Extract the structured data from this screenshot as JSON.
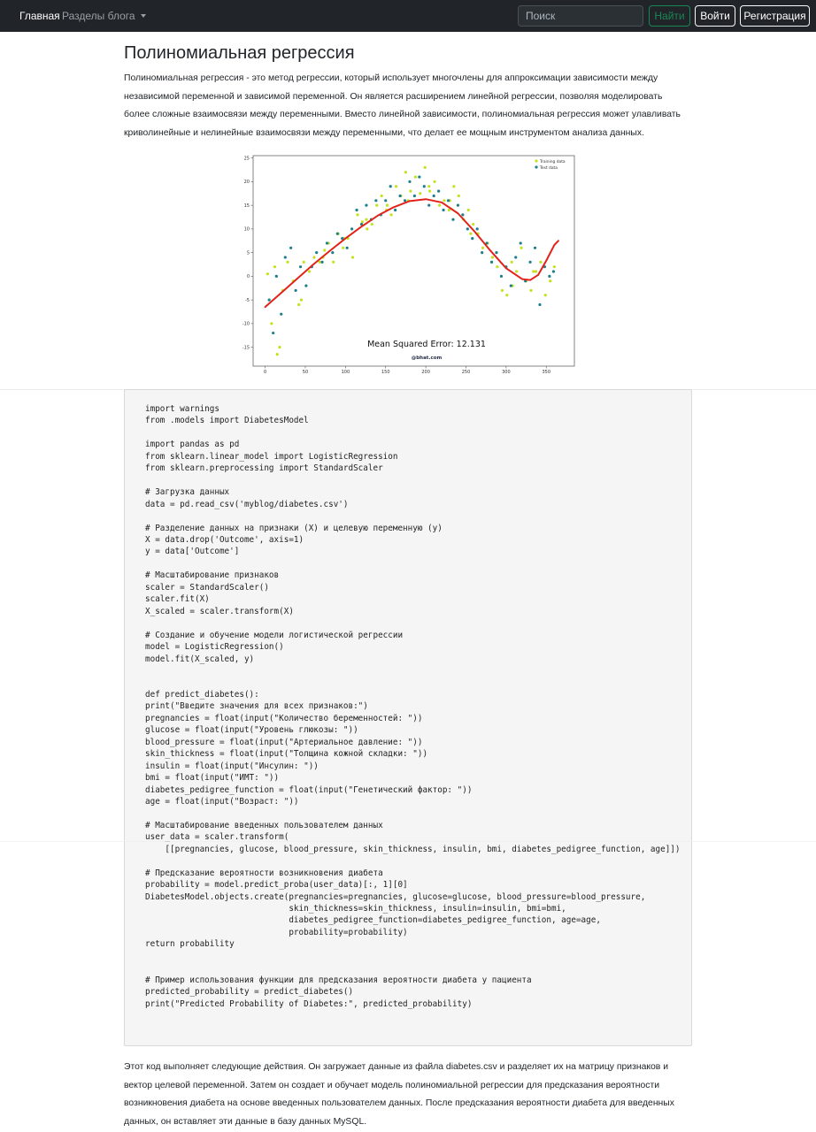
{
  "navbar": {
    "home_label": "Главная",
    "categories_label": "Разделы блога",
    "search_placeholder": "Поиск",
    "find_label": "Найти",
    "login_label": "Войти",
    "register_label": "Регистрация"
  },
  "article": {
    "title": "Полиномиальная регрессия",
    "intro": "Полиномиальная регрессия - это метод регрессии, который использует многочлены для аппроксимации зависимости между независимой переменной и зависимой переменной. Он является расширением линейной регрессии, позволяя моделировать более сложные взаимосвязи между переменными. Вместо линейной зависимости, полиномиальная регрессия может улавливать криволинейные и нелинейные взаимосвязи между переменными, что делает ее мощным инструментом анализа данных.",
    "code": "import warnings\nfrom .models import DiabetesModel\n\nimport pandas as pd\nfrom sklearn.linear_model import LogisticRegression\nfrom sklearn.preprocessing import StandardScaler\n\n# Загрузка данных\ndata = pd.read_csv('myblog/diabetes.csv')\n\n# Разделение данных на признаки (X) и целевую переменную (y)\nX = data.drop('Outcome', axis=1)\ny = data['Outcome']\n\n# Масштабирование признаков\nscaler = StandardScaler()\nscaler.fit(X)\nX_scaled = scaler.transform(X)\n\n# Создание и обучение модели логистической регрессии\nmodel = LogisticRegression()\nmodel.fit(X_scaled, y)\n\n\ndef predict_diabetes():\nprint(\"Введите значения для всех признаков:\")\npregnancies = float(input(\"Количество беременностей: \"))\nglucose = float(input(\"Уровень глюкозы: \"))\nblood_pressure = float(input(\"Артериальное давление: \"))\nskin_thickness = float(input(\"Толщина кожной складки: \"))\ninsulin = float(input(\"Инсулин: \"))\nbmi = float(input(\"ИМТ: \"))\ndiabetes_pedigree_function = float(input(\"Генетический фактор: \"))\nage = float(input(\"Возраст: \"))\n\n# Масштабирование введенных пользователем данных\nuser_data = scaler.transform(\n    [[pregnancies, glucose, blood_pressure, skin_thickness, insulin, bmi, diabetes_pedigree_function, age]])\n\n# Предсказание вероятности возникновения диабета\nprobability = model.predict_proba(user_data)[:, 1][0]\nDiabetesModel.objects.create(pregnancies=pregnancies, glucose=glucose, blood_pressure=blood_pressure,\n                             skin_thickness=skin_thickness, insulin=insulin, bmi=bmi,\n                             diabetes_pedigree_function=diabetes_pedigree_function, age=age,\n                             probability=probability)\nreturn probability\n\n\n# Пример использования функции для предсказания вероятности диабета у пациента\npredicted_probability = predict_diabetes()\nprint(\"Predicted Probability of Diabetes:\", predicted_probability)",
    "outro": "Этот код выполняет следующие действия. Он загружает данные из файла diabetes.csv и разделяет их на матрицу признаков и вектор целевой переменной. Затем он создает и обучает модель полиномиальной регрессии для предсказания вероятности возникновения диабета на основе введенных пользователем данных. После предсказания вероятности диабета для введенных данных, он вставляет эти данные в базу данных MySQL."
  },
  "chart_data": {
    "type": "scatter",
    "title": "",
    "xlabel": "",
    "ylabel": "",
    "xlim": [
      -15,
      385
    ],
    "ylim": [
      -19,
      25.5
    ],
    "xticks": [
      0,
      50,
      100,
      150,
      200,
      250,
      300,
      350
    ],
    "yticks": [
      -15,
      -10,
      -5,
      0,
      5,
      10,
      15,
      20,
      25
    ],
    "grid": false,
    "legend_position": "top-right",
    "annotation": "Mean Squared Error: 12.131",
    "watermark": "@bhat.com",
    "series": [
      {
        "name": "Training data",
        "kind": "points",
        "color": "#c4e21c",
        "x": [
          3,
          8,
          12,
          15,
          22,
          28,
          35,
          42,
          48,
          55,
          61,
          68,
          74,
          79,
          85,
          91,
          97,
          103,
          109,
          115,
          121,
          127,
          133,
          139,
          145,
          151,
          157,
          163,
          169,
          175,
          181,
          187,
          193,
          199,
          205,
          211,
          217,
          223,
          229,
          235,
          241,
          247,
          253,
          259,
          265,
          271,
          277,
          283,
          289,
          295,
          301,
          307,
          313,
          319,
          325,
          331,
          337,
          343,
          349,
          355,
          360,
          18,
          45,
          72,
          98,
          126,
          152,
          178,
          204,
          230,
          256,
          282,
          308,
          334
        ],
        "y": [
          0.5,
          -10,
          2,
          -16.5,
          -3,
          3,
          -1,
          -6,
          3,
          1,
          4,
          3,
          5.5,
          7,
          3,
          9,
          6,
          8,
          4,
          13,
          11.5,
          10,
          11,
          15,
          17,
          14,
          13,
          19,
          17,
          22,
          18,
          21,
          17.5,
          23,
          18,
          20,
          15,
          16,
          14,
          19,
          17,
          12,
          14,
          11,
          9,
          6,
          7,
          4,
          2,
          -3,
          -4,
          3,
          1,
          6,
          -1,
          -3,
          1,
          3,
          -4,
          -1,
          2,
          -15,
          -5,
          4,
          8,
          12,
          15,
          16,
          19,
          16,
          9,
          3,
          -2,
          1
        ]
      },
      {
        "name": "Test data",
        "kind": "points",
        "color": "#1c7f8c",
        "x": [
          5,
          10,
          14,
          20,
          25,
          32,
          38,
          44,
          51,
          58,
          64,
          71,
          77,
          84,
          90,
          96,
          102,
          108,
          114,
          120,
          126,
          132,
          138,
          144,
          150,
          156,
          162,
          168,
          174,
          180,
          186,
          192,
          198,
          204,
          210,
          216,
          222,
          228,
          234,
          240,
          246,
          252,
          258,
          264,
          270,
          276,
          282,
          288,
          294,
          300,
          306,
          312,
          318,
          324,
          330,
          336,
          342,
          348,
          354,
          359
        ],
        "y": [
          -5,
          -12,
          0,
          -8,
          4,
          6,
          -3,
          2,
          -2,
          2,
          5,
          3,
          7,
          5,
          9,
          8,
          6,
          10,
          14,
          11,
          15,
          12,
          16,
          13,
          16,
          19,
          14,
          17,
          16,
          20,
          17,
          21,
          19,
          15,
          17,
          18,
          14,
          16,
          12,
          15,
          13,
          10,
          8,
          10,
          5,
          7,
          3,
          5,
          0,
          2,
          -2,
          4,
          7,
          -1,
          3,
          6,
          -6,
          2,
          0,
          1
        ]
      },
      {
        "name": "",
        "kind": "curve",
        "color": "#e2231a",
        "x": [
          0,
          20,
          40,
          60,
          80,
          100,
          120,
          140,
          160,
          180,
          200,
          220,
          240,
          260,
          280,
          300,
          320,
          330,
          340,
          350,
          360,
          365
        ],
        "y": [
          -6.5,
          -3.5,
          -0.5,
          2.5,
          5.3,
          8.0,
          10.5,
          12.8,
          14.6,
          15.9,
          16.3,
          15.6,
          13.3,
          9.6,
          5.5,
          1.7,
          -0.6,
          -0.8,
          0.3,
          3.3,
          6.6,
          7.5
        ]
      }
    ]
  }
}
